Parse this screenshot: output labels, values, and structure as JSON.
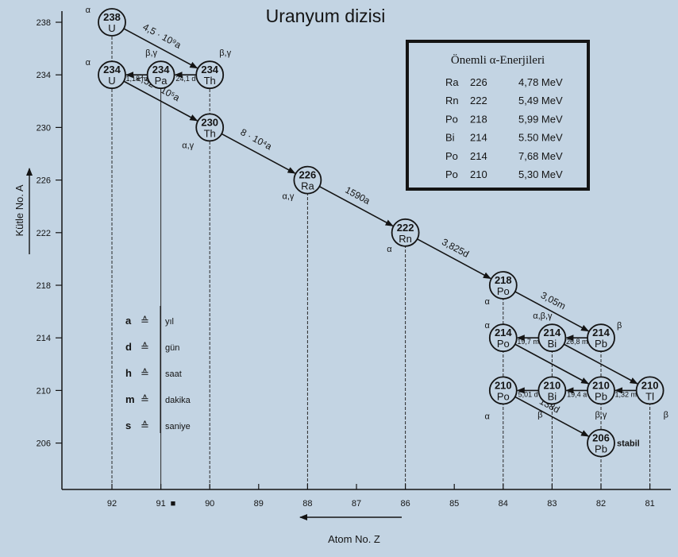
{
  "title": "Uranyum dizisi",
  "y_axis": {
    "label": "Kütle No. A",
    "ticks": [
      "238",
      "234",
      "230",
      "226",
      "222",
      "218",
      "214",
      "210",
      "206"
    ]
  },
  "x_axis": {
    "label": "Atom No. Z",
    "ticks": [
      "92",
      "91",
      "90",
      "89",
      "88",
      "87",
      "86",
      "85",
      "84",
      "83",
      "82",
      "81"
    ],
    "marker": "■"
  },
  "energy_box": {
    "title": "Önemli α-Enerjileri",
    "rows": [
      {
        "nuclide": "Ra",
        "mass": "226",
        "energy": "4,78 MeV"
      },
      {
        "nuclide": "Rn",
        "mass": "222",
        "energy": "5,49 MeV"
      },
      {
        "nuclide": "Po",
        "mass": "218",
        "energy": "5,99 MeV"
      },
      {
        "nuclide": "Bi",
        "mass": "214",
        "energy": "5.50 MeV"
      },
      {
        "nuclide": "Po",
        "mass": "214",
        "energy": "7,68 MeV"
      },
      {
        "nuclide": "Po",
        "mass": "210",
        "energy": "5,30 MeV"
      }
    ]
  },
  "units_legend": [
    {
      "symbol": "a",
      "eq": "≙",
      "meaning": "yıl"
    },
    {
      "symbol": "d",
      "eq": "≙",
      "meaning": "gün"
    },
    {
      "symbol": "h",
      "eq": "≙",
      "meaning": "saat"
    },
    {
      "symbol": "m",
      "eq": "≙",
      "meaning": "dakika"
    },
    {
      "symbol": "s",
      "eq": "≙",
      "meaning": "saniye"
    }
  ],
  "nuclides": [
    {
      "id": "U238",
      "mass": "238",
      "symbol": "U",
      "A": 238,
      "Z": 92,
      "radiation": "α"
    },
    {
      "id": "U234",
      "mass": "234",
      "symbol": "U",
      "A": 234,
      "Z": 92,
      "radiation": "α"
    },
    {
      "id": "Pa234",
      "mass": "234",
      "symbol": "Pa",
      "A": 234,
      "Z": 91,
      "radiation": "β,γ"
    },
    {
      "id": "Th234",
      "mass": "234",
      "symbol": "Th",
      "A": 234,
      "Z": 90,
      "radiation": "β,γ"
    },
    {
      "id": "Th230",
      "mass": "230",
      "symbol": "Th",
      "A": 230,
      "Z": 90,
      "radiation": "α,γ"
    },
    {
      "id": "Ra226",
      "mass": "226",
      "symbol": "Ra",
      "A": 226,
      "Z": 88,
      "radiation": "α,γ"
    },
    {
      "id": "Rn222",
      "mass": "222",
      "symbol": "Rn",
      "A": 222,
      "Z": 86,
      "radiation": "α"
    },
    {
      "id": "Po218",
      "mass": "218",
      "symbol": "Po",
      "A": 218,
      "Z": 84,
      "radiation": "α"
    },
    {
      "id": "Po214",
      "mass": "214",
      "symbol": "Po",
      "A": 214,
      "Z": 84,
      "radiation": "α"
    },
    {
      "id": "Bi214",
      "mass": "214",
      "symbol": "Bi",
      "A": 214,
      "Z": 83,
      "radiation": "α,β,γ"
    },
    {
      "id": "Pb214",
      "mass": "214",
      "symbol": "Pb",
      "A": 214,
      "Z": 82,
      "radiation": "β"
    },
    {
      "id": "Po210",
      "mass": "210",
      "symbol": "Po",
      "A": 210,
      "Z": 84,
      "radiation": "α"
    },
    {
      "id": "Bi210",
      "mass": "210",
      "symbol": "Bi",
      "A": 210,
      "Z": 83,
      "radiation": "β"
    },
    {
      "id": "Pb210",
      "mass": "210",
      "symbol": "Pb",
      "A": 210,
      "Z": 82,
      "radiation": "β,γ"
    },
    {
      "id": "Tl210",
      "mass": "210",
      "symbol": "Tl",
      "A": 210,
      "Z": 81,
      "radiation": "β"
    },
    {
      "id": "Pb206",
      "mass": "206",
      "symbol": "Pb",
      "A": 206,
      "Z": 82,
      "radiation": "",
      "note": "stabil"
    }
  ],
  "decays": [
    {
      "from": "U238",
      "to": "Th234",
      "half_life": "4,5 · 10⁹a"
    },
    {
      "from": "Th234",
      "to": "Pa234",
      "half_life": "24,1 d"
    },
    {
      "from": "Pa234",
      "to": "U234",
      "half_life": "1,18 m"
    },
    {
      "from": "U234",
      "to": "Th230",
      "half_life": "2,52 · 10⁵a"
    },
    {
      "from": "Th230",
      "to": "Ra226",
      "half_life": "8 · 10⁴a"
    },
    {
      "from": "Ra226",
      "to": "Rn222",
      "half_life": "1590a"
    },
    {
      "from": "Rn222",
      "to": "Po218",
      "half_life": "3,825d"
    },
    {
      "from": "Po218",
      "to": "Pb214",
      "half_life": "3,05m"
    },
    {
      "from": "Pb214",
      "to": "Bi214",
      "half_life": "26,8 m"
    },
    {
      "from": "Bi214",
      "to": "Po214",
      "half_life": "19,7 m"
    },
    {
      "from": "Bi214",
      "to": "Tl210",
      "half_life": ""
    },
    {
      "from": "Po214",
      "to": "Pb210",
      "half_life": ""
    },
    {
      "from": "Tl210",
      "to": "Pb210",
      "half_life": "1,32 m"
    },
    {
      "from": "Pb210",
      "to": "Bi210",
      "half_life": "19,4 a"
    },
    {
      "from": "Bi210",
      "to": "Po210",
      "half_life": "5,01 d"
    },
    {
      "from": "Po210",
      "to": "Pb206",
      "half_life": "138d"
    }
  ]
}
